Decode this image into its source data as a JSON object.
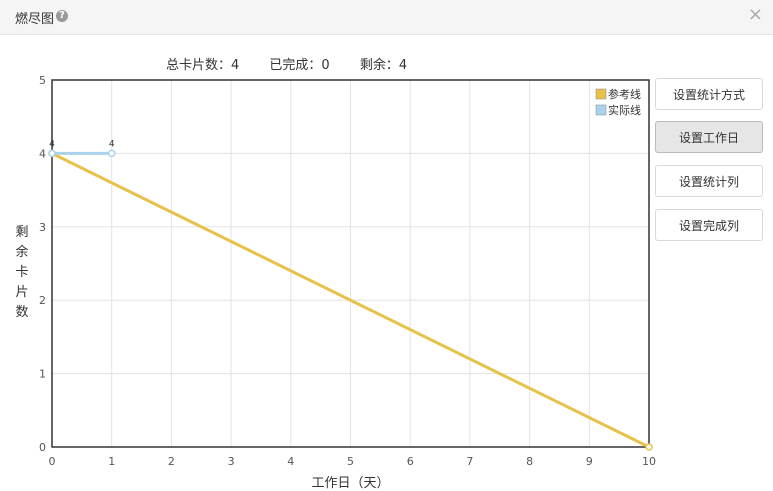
{
  "dialog": {
    "title": "燃尽图",
    "help_icon": "?",
    "close_icon": "×"
  },
  "summary": {
    "total": "总卡片数：4",
    "done": "已完成：0",
    "remaining": "剩余：4"
  },
  "buttons": [
    {
      "label": "设置统计方式"
    },
    {
      "label": "设置工作日",
      "active": true
    },
    {
      "label": "设置统计列"
    },
    {
      "label": "设置完成列"
    }
  ],
  "chart_data": {
    "type": "line",
    "xlabel": "工作日（天）",
    "ylabel": "剩余卡片数",
    "xlim": [
      0,
      10
    ],
    "ylim": [
      0,
      5
    ],
    "xticks": [
      0,
      1,
      2,
      3,
      4,
      5,
      6,
      7,
      8,
      9,
      10
    ],
    "yticks": [
      0,
      1,
      2,
      3,
      4,
      5
    ],
    "grid": true,
    "legend_position": "top-right",
    "series": [
      {
        "name": "参考线",
        "color": "#e8c14a",
        "x": [
          0,
          10
        ],
        "y": [
          4,
          0
        ]
      },
      {
        "name": "实际线",
        "color": "#a9d2ec",
        "x": [
          0,
          1
        ],
        "y": [
          4,
          4
        ],
        "point_labels": [
          "4",
          "4"
        ]
      }
    ]
  }
}
